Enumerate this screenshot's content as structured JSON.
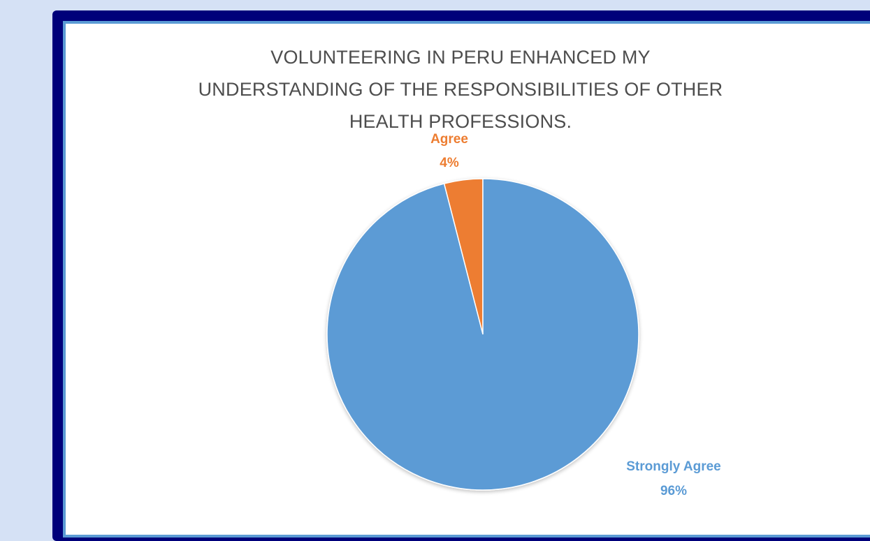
{
  "chart_data": {
    "type": "pie",
    "title": "VOLUNTEERING IN PERU ENHANCED MY UNDERSTANDING OF THE RESPONSIBILITIES OF OTHER HEALTH PROFESSIONS.",
    "title_lines": [
      "VOLUNTEERING IN PERU ENHANCED MY",
      "UNDERSTANDING OF THE RESPONSIBILITIES OF OTHER",
      "HEALTH PROFESSIONS."
    ],
    "slices": [
      {
        "label": "Agree",
        "value": 4,
        "display": "4%",
        "color": "#ed7d31"
      },
      {
        "label": "Strongly Agree",
        "value": 96,
        "display": "96%",
        "color": "#5b9bd5"
      }
    ],
    "legend": "none"
  },
  "colors": {
    "frame": "#00007a",
    "inner_border": "#5b9bd5",
    "background": "#d5e1f5",
    "title_text": "#4d4d4d"
  }
}
